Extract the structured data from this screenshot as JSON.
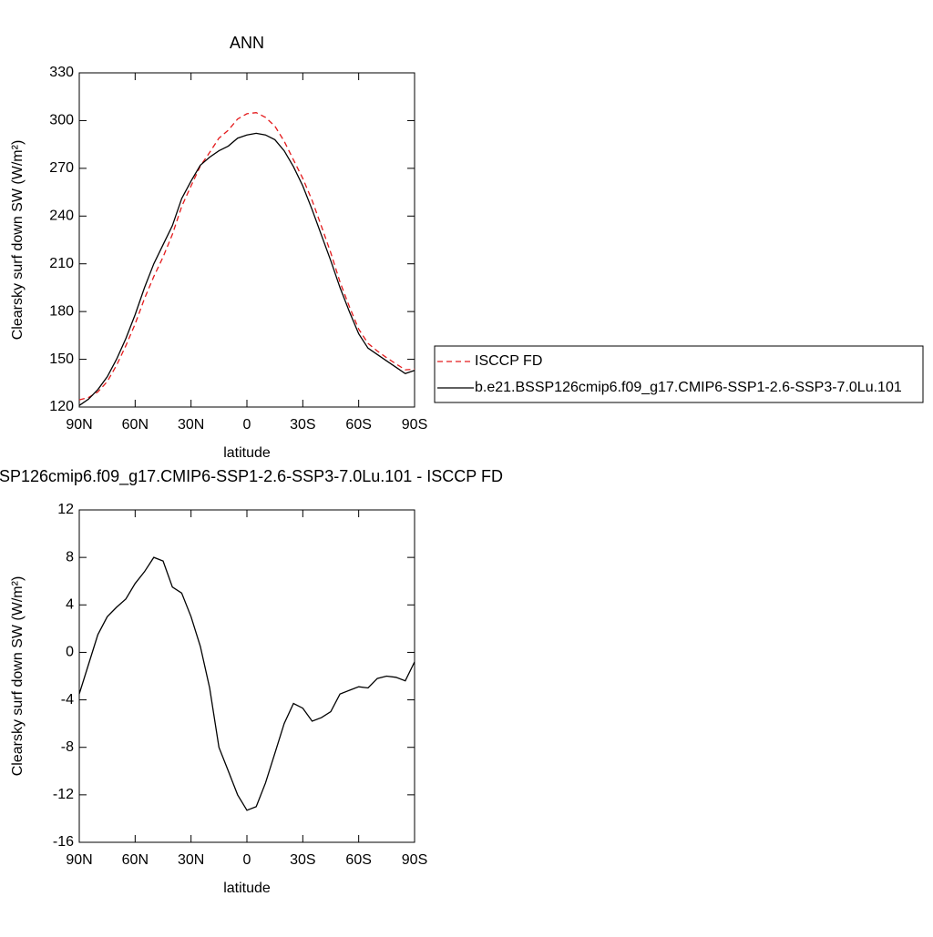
{
  "chart_data": [
    {
      "type": "line",
      "title": "ANN",
      "xlabel": "latitude",
      "ylabel": "Clearsky surf down SW (W/m²)",
      "x": [
        90,
        85,
        80,
        75,
        70,
        65,
        60,
        55,
        50,
        45,
        40,
        35,
        30,
        25,
        20,
        15,
        10,
        5,
        0,
        -5,
        -10,
        -15,
        -20,
        -25,
        -30,
        -35,
        -40,
        -45,
        -50,
        -55,
        -60,
        -65,
        -70,
        -75,
        -80,
        -85,
        -90
      ],
      "series": [
        {
          "name": "ISCCP FD",
          "color": "#e41a1c",
          "dash": true,
          "values": [
            124.5,
            126,
            129.5,
            136,
            146.2,
            158.5,
            172.2,
            188.2,
            202,
            214.3,
            228.5,
            246,
            259,
            271.5,
            280,
            289,
            294,
            301,
            304.3,
            305,
            302,
            296.5,
            287,
            275.3,
            263.7,
            249.8,
            233.5,
            217,
            198.5,
            183.2,
            168.9,
            160,
            155.2,
            151,
            147.1,
            143.4,
            143.8
          ]
        },
        {
          "name": "b.e21.BSSP126cmip6.f09_g17.CMIP6-SSP1-2.6-SSP3-7.0Lu.101",
          "color": "#000000",
          "dash": false,
          "values": [
            121,
            125,
            131,
            139,
            150,
            163,
            178,
            195,
            210,
            222,
            234,
            251,
            262,
            272,
            277,
            281,
            284,
            289,
            291,
            292,
            291,
            288,
            281,
            271,
            259,
            244,
            228,
            212,
            195,
            180,
            166,
            157,
            153,
            149,
            145,
            141,
            143
          ]
        }
      ],
      "xlim": [
        90,
        -90
      ],
      "xticks": [
        {
          "value": 90,
          "label": "90N"
        },
        {
          "value": 60,
          "label": "60N"
        },
        {
          "value": 30,
          "label": "30N"
        },
        0,
        {
          "value": -30,
          "label": "30S"
        },
        {
          "value": -60,
          "label": "60S"
        },
        {
          "value": -90,
          "label": "90S"
        }
      ],
      "ylim": [
        120,
        330
      ],
      "yticks": [
        120,
        150,
        180,
        210,
        240,
        270,
        300,
        330
      ],
      "legend": "right"
    },
    {
      "type": "line",
      "title": "SP126cmip6.f09_g17.CMIP6-SSP1-2.6-SSP3-7.0Lu.101 - ISCCP FD",
      "xlabel": "latitude",
      "ylabel": "Clearsky surf down SW (W/m²)",
      "x": [
        90,
        85,
        80,
        75,
        70,
        65,
        60,
        55,
        50,
        45,
        40,
        35,
        30,
        25,
        20,
        15,
        10,
        5,
        0,
        -5,
        -10,
        -15,
        -20,
        -25,
        -30,
        -35,
        -40,
        -45,
        -50,
        -55,
        -60,
        -65,
        -70,
        -75,
        -80,
        -85,
        -90
      ],
      "values": [
        -3.5,
        -1,
        1.5,
        3,
        3.8,
        4.5,
        5.8,
        6.8,
        8,
        7.7,
        5.5,
        5,
        3,
        0.5,
        -3,
        -8,
        -10,
        -12,
        -13.3,
        -13,
        -11,
        -8.5,
        -6,
        -4.3,
        -4.7,
        -5.8,
        -5.5,
        -5,
        -3.5,
        -3.2,
        -2.9,
        -3,
        -2.2,
        -2,
        -2.1,
        -2.4,
        -0.8
      ],
      "color": "#000000",
      "xlim": [
        90,
        -90
      ],
      "xticks": [
        {
          "value": 90,
          "label": "90N"
        },
        {
          "value": 60,
          "label": "60N"
        },
        {
          "value": 30,
          "label": "30N"
        },
        0,
        {
          "value": -30,
          "label": "30S"
        },
        {
          "value": -60,
          "label": "60S"
        },
        {
          "value": -90,
          "label": "90S"
        }
      ],
      "ylim": [
        -16,
        12
      ],
      "yticks": [
        -16,
        -12,
        -8,
        -4,
        0,
        4,
        8,
        12
      ]
    }
  ]
}
